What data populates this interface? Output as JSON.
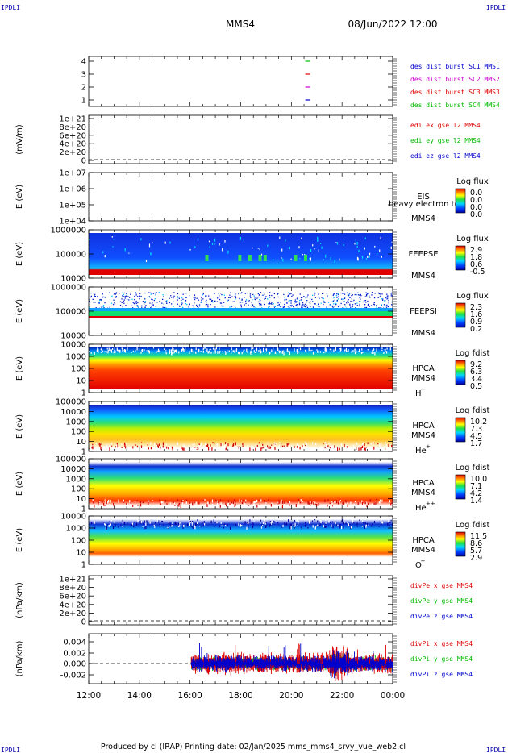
{
  "corner_labels": {
    "tl": "IPDLI",
    "tr": "IPDLI",
    "bl": "IPDLI",
    "br": "IPDLI"
  },
  "header": {
    "spacecraft": "MMS4",
    "datetime": "08/Jun/2022 12:00"
  },
  "footer": "Produced by cl (IRAP)   Printing date: 02/Jan/2025   mms_mms4_srvy_vue_web2.cl",
  "colors": {
    "mms1": "#0000cc",
    "mms2": "#cc00cc",
    "mms3": "#dd0000",
    "mms4": "#00bb00"
  },
  "chart_data": {
    "type": "heatmap",
    "x_axis": {
      "ticks": [
        "12:00",
        "14:00",
        "16:00",
        "18:00",
        "20:00",
        "22:00",
        "00:00"
      ],
      "range_hours": [
        12,
        24
      ]
    },
    "panels": [
      {
        "id": "p1",
        "type": "scatter",
        "ylabel": "",
        "yticks": [
          "4",
          "3",
          "2",
          "1"
        ],
        "legend": [
          "des dist burst SC1 MMS1",
          "des dist burst SC2 MMS2",
          "des dist burst SC3 MMS3",
          "des dist burst SC4 MMS4"
        ],
        "legend_colors": [
          "#0000cc",
          "#cc00cc",
          "#dd0000",
          "#00bb00"
        ],
        "markers": [
          {
            "sc": 4,
            "x": 20.55
          },
          {
            "sc": 3,
            "x": 20.55
          },
          {
            "sc": 2,
            "x": 20.55
          },
          {
            "sc": 1,
            "x": 20.55
          }
        ]
      },
      {
        "id": "p2",
        "type": "line",
        "ylabel": "(mV/m)",
        "yticks": [
          "1e+21",
          "8e+20",
          "6e+20",
          "4e+20",
          "2e+20",
          "0"
        ],
        "legend": [
          "edi ex gse l2 MMS4",
          "edi ey gse l2 MMS4",
          "edi ez gse l2 MMS4"
        ],
        "legend_colors": [
          "#dd0000",
          "#00bb00",
          "#0000cc"
        ]
      },
      {
        "id": "p3",
        "type": "heatmap",
        "ylabel": "E (eV)",
        "yticks": [
          "1e+07",
          "1e+06",
          "1e+05",
          "1e+04"
        ],
        "labels": [
          "EIS",
          "MMS4"
        ],
        "overlay_text": "heavy electron to",
        "cbar_title": "Log flux",
        "cbar_ticks": [
          "0.0",
          "0.0",
          "0.0",
          "0.0"
        ]
      },
      {
        "id": "p4",
        "type": "heatmap",
        "ylabel": "E (eV)",
        "yticks": [
          "1000000",
          "100000",
          "10000"
        ],
        "labels": [
          "FEEPSE",
          "MMS4"
        ],
        "cbar_title": "Log flux",
        "cbar_ticks": [
          "2.9",
          "1.8",
          "0.6",
          "-0.5"
        ]
      },
      {
        "id": "p5",
        "type": "heatmap",
        "ylabel": "E (eV)",
        "yticks": [
          "1000000",
          "100000",
          "10000"
        ],
        "labels": [
          "FEEPSI",
          "MMS4"
        ],
        "cbar_title": "Log flux",
        "cbar_ticks": [
          "2.3",
          "1.6",
          "0.9",
          "0.2"
        ]
      },
      {
        "id": "p6",
        "type": "heatmap",
        "ylabel": "E (eV)",
        "yticks": [
          "10000",
          "1000",
          "100",
          "10",
          "1"
        ],
        "labels": [
          "HPCA",
          "MMS4"
        ],
        "species": "H",
        "species_sup": "+",
        "cbar_title": "Log fdist",
        "cbar_ticks": [
          "9.2",
          "6.3",
          "3.4",
          "0.5"
        ]
      },
      {
        "id": "p7",
        "type": "heatmap",
        "ylabel": "E (eV)",
        "yticks": [
          "100000",
          "10000",
          "1000",
          "100",
          "10",
          "1"
        ],
        "labels": [
          "HPCA",
          "MMS4"
        ],
        "species": "He",
        "species_sup": "+",
        "cbar_title": "Log fdist",
        "cbar_ticks": [
          "10.2",
          "7.3",
          "4.5",
          "1.7"
        ]
      },
      {
        "id": "p8",
        "type": "heatmap",
        "ylabel": "E (eV)",
        "yticks": [
          "100000",
          "10000",
          "1000",
          "100",
          "10",
          "1"
        ],
        "labels": [
          "HPCA",
          "MMS4"
        ],
        "species": "He",
        "species_sup": "++",
        "cbar_title": "Log fdist",
        "cbar_ticks": [
          "10.0",
          "7.1",
          "4.2",
          "1.4"
        ]
      },
      {
        "id": "p9",
        "type": "heatmap",
        "ylabel": "E (eV)",
        "yticks": [
          "10000",
          "1000",
          "100",
          "10",
          "1"
        ],
        "labels": [
          "HPCA",
          "MMS4"
        ],
        "species": "O",
        "species_sup": "+",
        "cbar_title": "Log fdist",
        "cbar_ticks": [
          "11.5",
          "8.6",
          "5.7",
          "2.9"
        ]
      },
      {
        "id": "p10",
        "type": "line",
        "ylabel": "(nPa/km)",
        "yticks": [
          "1e+21",
          "8e+20",
          "6e+20",
          "4e+20",
          "2e+20",
          "0"
        ],
        "legend": [
          "divPe x gse MMS4",
          "divPe y gse MMS4",
          "divPe z gse MMS4"
        ],
        "legend_colors": [
          "#dd0000",
          "#00bb00",
          "#0000cc"
        ]
      },
      {
        "id": "p11",
        "type": "line",
        "ylabel": "(nPa/km)",
        "yticks": [
          "0.004",
          "0.002",
          "0.000",
          "-0.002"
        ],
        "legend": [
          "divPi x gse MMS4",
          "divPi y gse MMS4",
          "divPi z gse MMS4"
        ],
        "legend_colors": [
          "#dd0000",
          "#00bb00",
          "#0000cc"
        ],
        "data_start_hour": 16.05
      }
    ]
  }
}
